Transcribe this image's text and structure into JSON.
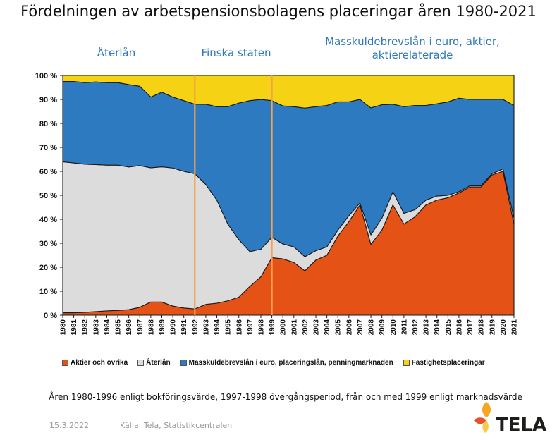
{
  "title": "Fördelningen av arbetspensionsbolagens placeringar åren 1980-2021",
  "periods": [
    "Återlån",
    "Finska staten",
    "Masskuldebrevslån i euro, aktier,",
    "aktierelaterade"
  ],
  "note": "Åren 1980-1996 enligt bokföringsvärde, 1997-1998 övergångsperiod, från och med 1999 enligt marknadsvärde",
  "footer": {
    "date": "15.3.2022",
    "source": "Källa: Tela, Statistikcentralen"
  },
  "logo": {
    "text": "TELA",
    "colors": [
      "#f5a623",
      "#e8522a",
      "#f7c948"
    ]
  },
  "chart_data": {
    "type": "area",
    "stacked": true,
    "x": [
      1980,
      1981,
      1982,
      1983,
      1984,
      1985,
      1986,
      1987,
      1988,
      1989,
      1990,
      1991,
      1992,
      1993,
      1994,
      1995,
      1996,
      1997,
      1998,
      1999,
      2000,
      2001,
      2002,
      2003,
      2004,
      2005,
      2006,
      2007,
      2008,
      2009,
      2010,
      2011,
      2012,
      2013,
      2014,
      2015,
      2016,
      2017,
      2018,
      2019,
      2020,
      2021
    ],
    "yticks": [
      "0 %",
      "10 %",
      "20 %",
      "30 %",
      "40 %",
      "50 %",
      "60 %",
      "70 %",
      "80 %",
      "90 %",
      "100 %"
    ],
    "ylim": [
      0,
      100
    ],
    "series": [
      {
        "name": "Aktier och övrika",
        "color": "#e55216",
        "values": [
          1,
          1,
          1.2,
          1.5,
          1.8,
          2,
          2.3,
          3.3,
          5.5,
          5.5,
          3.8,
          3,
          2.6,
          4.5,
          5,
          6,
          7.5,
          12,
          16,
          24,
          23.5,
          22,
          18.5,
          23,
          25,
          33,
          39,
          46,
          29.5,
          35.5,
          46,
          38,
          41,
          46,
          48,
          49,
          51,
          53.5,
          53.5,
          58.5,
          60,
          38
        ]
      },
      {
        "name": "Återlån",
        "color": "#dcdcdc",
        "values": [
          63,
          62.5,
          61.8,
          61.3,
          60.8,
          60.6,
          59.5,
          59.1,
          56,
          56.4,
          57.6,
          57,
          56.4,
          50,
          43,
          32,
          24,
          14.5,
          11.5,
          8.5,
          6.2,
          6.5,
          5.9,
          3.9,
          3.5,
          2.5,
          2.5,
          0.8,
          4,
          5,
          5.5,
          4.5,
          3,
          2,
          1.7,
          1,
          0.5,
          0.5,
          0.5,
          0.5,
          1,
          2.5
        ]
      },
      {
        "name": "Masskuldebrevslån i euro, placeringslån, penningmarknaden",
        "color": "#2d7ac0",
        "values": [
          33.5,
          34,
          34,
          34.5,
          34.4,
          34.4,
          34.4,
          33.1,
          29.5,
          31.1,
          29.6,
          29.5,
          29,
          33.5,
          39,
          49,
          57,
          63,
          62.5,
          57,
          57.6,
          58.5,
          62,
          60.1,
          59,
          53.5,
          47.5,
          43.2,
          53,
          47.3,
          36.5,
          44.5,
          43.5,
          39.5,
          38.5,
          39,
          39,
          36,
          36,
          31,
          29,
          47
        ]
      },
      {
        "name": "Fastighetsplaceringar",
        "color": "#f6d214",
        "values": [
          2.5,
          2.5,
          3,
          2.7,
          3,
          3,
          3.8,
          4.5,
          9,
          7,
          9,
          10.5,
          12,
          12,
          13,
          13,
          11.5,
          10.5,
          10,
          10.5,
          12.7,
          13,
          13.6,
          13,
          12.5,
          11,
          11,
          10,
          13.5,
          12.2,
          12,
          13,
          12.5,
          12.5,
          11.8,
          11,
          9.5,
          10,
          10,
          10,
          10,
          12.5
        ]
      }
    ],
    "markers": [
      1992,
      1999
    ],
    "marker_color": "#f5a04a",
    "legend_position": "bottom",
    "grid": false
  }
}
